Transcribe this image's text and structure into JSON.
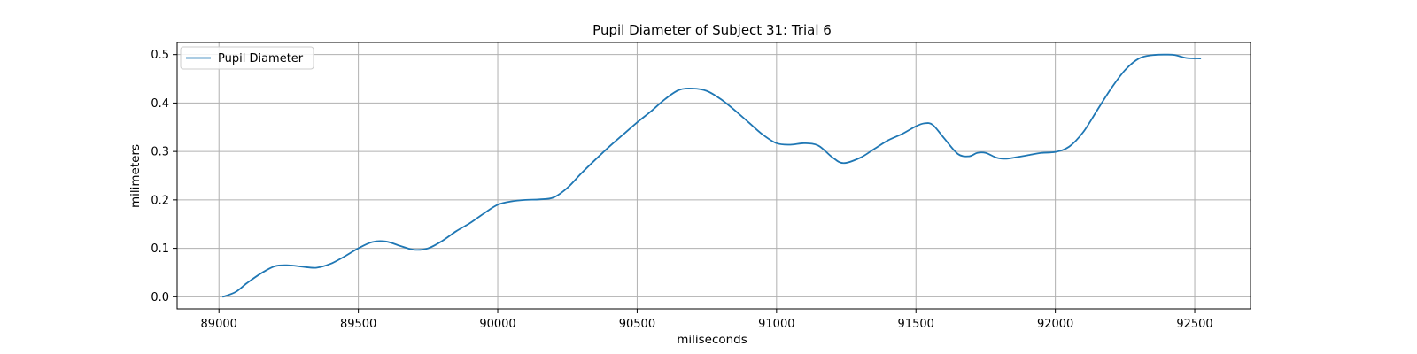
{
  "chart_data": {
    "type": "line",
    "title": "Pupil Diameter of Subject 31: Trial 6",
    "xlabel": "miliseconds",
    "ylabel": "milimeters",
    "xlim": [
      88850,
      92700
    ],
    "ylim": [
      -0.025,
      0.525
    ],
    "xticks": [
      89000,
      89500,
      90000,
      90500,
      91000,
      91500,
      92000,
      92500
    ],
    "yticks": [
      0.0,
      0.1,
      0.2,
      0.3,
      0.4,
      0.5
    ],
    "xtick_labels": [
      "89000",
      "89500",
      "90000",
      "90500",
      "91000",
      "91500",
      "92000",
      "92500"
    ],
    "ytick_labels": [
      "0.0",
      "0.1",
      "0.2",
      "0.3",
      "0.4",
      "0.5"
    ],
    "grid": true,
    "legend_position": "upper-left",
    "colors": {
      "line": "#1f77b4",
      "grid": "#b0b0b0"
    },
    "series": [
      {
        "name": "Pupil Diameter",
        "x": [
          89015,
          89060,
          89100,
          89150,
          89200,
          89250,
          89300,
          89350,
          89400,
          89450,
          89500,
          89550,
          89600,
          89650,
          89700,
          89750,
          89800,
          89850,
          89900,
          89950,
          90000,
          90050,
          90100,
          90150,
          90200,
          90250,
          90300,
          90350,
          90400,
          90450,
          90500,
          90550,
          90600,
          90650,
          90700,
          90750,
          90800,
          90850,
          90900,
          90950,
          91000,
          91050,
          91100,
          91150,
          91200,
          91240,
          91300,
          91350,
          91400,
          91450,
          91500,
          91530,
          91560,
          91600,
          91650,
          91690,
          91720,
          91750,
          91790,
          91820,
          91850,
          91900,
          91950,
          92000,
          92050,
          92100,
          92150,
          92200,
          92250,
          92300,
          92350,
          92400,
          92430,
          92470,
          92520
        ],
        "y": [
          0.0,
          0.01,
          0.028,
          0.048,
          0.063,
          0.065,
          0.062,
          0.06,
          0.068,
          0.083,
          0.1,
          0.113,
          0.114,
          0.105,
          0.097,
          0.1,
          0.115,
          0.135,
          0.152,
          0.172,
          0.19,
          0.197,
          0.2,
          0.201,
          0.205,
          0.225,
          0.255,
          0.283,
          0.31,
          0.335,
          0.36,
          0.383,
          0.408,
          0.427,
          0.43,
          0.425,
          0.408,
          0.385,
          0.36,
          0.335,
          0.317,
          0.314,
          0.317,
          0.312,
          0.288,
          0.276,
          0.287,
          0.305,
          0.323,
          0.336,
          0.352,
          0.358,
          0.355,
          0.328,
          0.295,
          0.29,
          0.297,
          0.297,
          0.287,
          0.285,
          0.287,
          0.292,
          0.297,
          0.299,
          0.31,
          0.34,
          0.385,
          0.43,
          0.468,
          0.492,
          0.499,
          0.5,
          0.499,
          0.493,
          0.492
        ]
      }
    ]
  }
}
